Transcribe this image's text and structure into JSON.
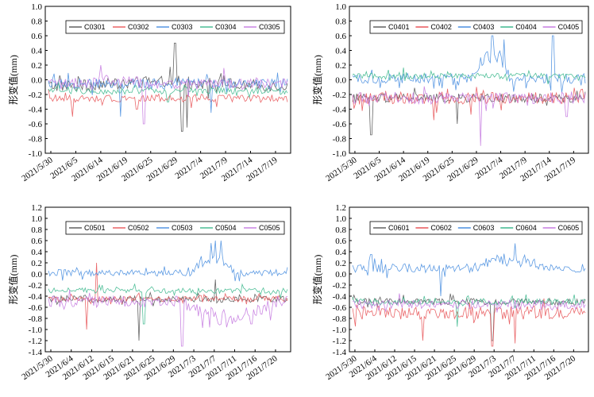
{
  "chart_data": [
    {
      "type": "line",
      "panel": "top-left",
      "ylabel": "形变值(mm)",
      "ylim": [
        -1.0,
        1.0
      ],
      "yticks": [
        1.0,
        0.8,
        0.6,
        0.4,
        0.2,
        0.0,
        -0.2,
        -0.4,
        -0.6,
        -0.8,
        -1.0
      ],
      "xticks": [
        "2021/5/30",
        "2021/6/5",
        "2021/6/14",
        "2021/6/19",
        "2021/6/25",
        "2021/6/29",
        "2021/7/4",
        "2021/7/9",
        "2021/7/14",
        "2021/7/19"
      ],
      "legend_position": "top",
      "series": [
        {
          "name": "C0301",
          "color": "#555555",
          "base": -0.08,
          "amp": 0.08,
          "spikes": [
            [
              0.53,
              0.5
            ],
            [
              0.56,
              -0.7
            ],
            [
              0.58,
              -0.65
            ]
          ],
          "hump": [
            0.15,
            0.85,
            0.05
          ]
        },
        {
          "name": "C0302",
          "color": "#e8575a",
          "base": -0.25,
          "amp": 0.05,
          "spikes": [
            [
              0.1,
              -0.5
            ],
            [
              0.37,
              -0.4
            ]
          ],
          "hump": [
            0,
            0,
            0
          ]
        },
        {
          "name": "C0303",
          "color": "#4a8fe0",
          "base": -0.05,
          "amp": 0.07,
          "spikes": [
            [
              0.3,
              -0.5
            ],
            [
              0.68,
              -0.45
            ]
          ],
          "hump": [
            0,
            0,
            0
          ]
        },
        {
          "name": "C0304",
          "color": "#3fb98f",
          "base": -0.15,
          "amp": 0.05,
          "spikes": [
            [
              0.5,
              -0.3
            ]
          ],
          "hump": [
            0,
            0,
            0
          ]
        },
        {
          "name": "C0305",
          "color": "#c57be0",
          "base": -0.05,
          "amp": 0.08,
          "spikes": [
            [
              0.22,
              0.2
            ],
            [
              0.4,
              -0.6
            ]
          ],
          "hump": [
            0.15,
            0.4,
            0.05
          ]
        }
      ]
    },
    {
      "type": "line",
      "panel": "top-right",
      "ylabel": "形变值(mm)",
      "ylim": [
        -1.0,
        1.0
      ],
      "yticks": [
        1.0,
        0.8,
        0.6,
        0.4,
        0.2,
        0.0,
        -0.2,
        -0.4,
        -0.6,
        -0.8,
        -1.0
      ],
      "xticks": [
        "2021/5/30",
        "2021/6/5",
        "2021/6/14",
        "2021/6/19",
        "2021/6/25",
        "2021/6/29",
        "2021/7/4",
        "2021/7/9",
        "2021/7/14",
        "2021/7/19"
      ],
      "legend_position": "top",
      "series": [
        {
          "name": "C0401",
          "color": "#555555",
          "base": -0.25,
          "amp": 0.06,
          "spikes": [
            [
              0.08,
              -0.75
            ],
            [
              0.45,
              -0.6
            ]
          ],
          "hump": [
            0,
            0,
            0
          ]
        },
        {
          "name": "C0402",
          "color": "#e8575a",
          "base": -0.25,
          "amp": 0.08,
          "spikes": [
            [
              0.35,
              -0.55
            ]
          ],
          "hump": [
            0,
            0,
            0
          ]
        },
        {
          "name": "C0403",
          "color": "#4a8fe0",
          "base": 0.02,
          "amp": 0.07,
          "spikes": [
            [
              0.6,
              0.6
            ],
            [
              0.65,
              0.55
            ],
            [
              0.86,
              0.6
            ]
          ],
          "hump": [
            0.52,
            0.68,
            0.35
          ]
        },
        {
          "name": "C0404",
          "color": "#3fb98f",
          "base": 0.05,
          "amp": 0.04,
          "spikes": [
            [
              0.2,
              0.1
            ]
          ],
          "hump": [
            0,
            0,
            0
          ]
        },
        {
          "name": "C0405",
          "color": "#c57be0",
          "base": -0.25,
          "amp": 0.08,
          "spikes": [
            [
              0.55,
              -0.9
            ],
            [
              0.92,
              -0.5
            ]
          ],
          "hump": [
            0,
            0,
            0
          ]
        }
      ]
    },
    {
      "type": "line",
      "panel": "bottom-left",
      "ylabel": "形变值(mm)",
      "ylim": [
        -1.4,
        1.2
      ],
      "yticks": [
        1.2,
        1.0,
        0.8,
        0.6,
        0.4,
        0.2,
        0.0,
        -0.2,
        -0.4,
        -0.6,
        -0.8,
        -1.0,
        -1.2,
        -1.4
      ],
      "xticks": [
        "2021/5/30",
        "2021/6/4",
        "2021/6/12",
        "2021/6/15",
        "2021/6/21",
        "2021/6/25",
        "2021/6/29",
        "2021/7/3",
        "2021/7/7",
        "2021/7/11",
        "2021/7/16",
        "2021/7/20"
      ],
      "legend_position": "top",
      "series": [
        {
          "name": "C0501",
          "color": "#555555",
          "base": -0.45,
          "amp": 0.06,
          "spikes": [
            [
              0.38,
              -1.2
            ],
            [
              0.7,
              -0.1
            ]
          ],
          "hump": [
            0,
            0,
            0
          ]
        },
        {
          "name": "C0502",
          "color": "#e8575a",
          "base": -0.45,
          "amp": 0.05,
          "spikes": [
            [
              0.16,
              -1.0
            ],
            [
              0.2,
              0.2
            ]
          ],
          "hump": [
            0,
            0,
            0
          ]
        },
        {
          "name": "C0503",
          "color": "#4a8fe0",
          "base": 0.02,
          "amp": 0.06,
          "spikes": [
            [
              0.7,
              0.6
            ],
            [
              0.72,
              0.6
            ]
          ],
          "hump": [
            0.6,
            0.78,
            0.3
          ]
        },
        {
          "name": "C0504",
          "color": "#3fb98f",
          "base": -0.3,
          "amp": 0.05,
          "spikes": [
            [
              0.4,
              -0.9
            ]
          ],
          "hump": [
            0,
            0,
            0
          ]
        },
        {
          "name": "C0505",
          "color": "#c57be0",
          "base": -0.5,
          "amp": 0.1,
          "spikes": [
            [
              0.56,
              -1.3
            ],
            [
              0.85,
              -0.9
            ]
          ],
          "hump": [
            0.55,
            0.95,
            -0.3
          ]
        }
      ]
    },
    {
      "type": "line",
      "panel": "bottom-right",
      "ylabel": "形变值(mm)",
      "ylim": [
        -1.4,
        1.2
      ],
      "yticks": [
        1.2,
        1.0,
        0.8,
        0.6,
        0.4,
        0.2,
        0.0,
        -0.2,
        -0.4,
        -0.6,
        -0.8,
        -1.0,
        -1.2,
        -1.4
      ],
      "xticks": [
        "2021/5/30",
        "2021/6/4",
        "2021/6/12",
        "2021/6/15",
        "2021/6/21",
        "2021/6/25",
        "2021/6/29",
        "2021/7/3",
        "2021/7/7",
        "2021/7/11",
        "2021/7/16",
        "2021/7/20"
      ],
      "legend_position": "top",
      "series": [
        {
          "name": "C0601",
          "color": "#555555",
          "base": -0.5,
          "amp": 0.06,
          "spikes": [
            [
              0.6,
              -1.2
            ]
          ],
          "hump": [
            0,
            0,
            0
          ]
        },
        {
          "name": "C0602",
          "color": "#e8575a",
          "base": -0.7,
          "amp": 0.12,
          "spikes": [
            [
              0.3,
              -1.2
            ],
            [
              0.6,
              -1.3
            ],
            [
              0.7,
              -1.25
            ]
          ],
          "hump": [
            0,
            0,
            0
          ]
        },
        {
          "name": "C0603",
          "color": "#4a8fe0",
          "base": 0.1,
          "amp": 0.08,
          "spikes": [
            [
              0.08,
              0.35
            ],
            [
              0.38,
              -0.4
            ],
            [
              0.7,
              0.55
            ]
          ],
          "hump": [
            0.5,
            0.85,
            0.15
          ]
        },
        {
          "name": "C0604",
          "color": "#3fb98f",
          "base": -0.5,
          "amp": 0.06,
          "spikes": [
            [
              0.45,
              -0.95
            ]
          ],
          "hump": [
            0,
            0,
            0
          ]
        },
        {
          "name": "C0605",
          "color": "#c57be0",
          "base": -0.55,
          "amp": 0.08,
          "spikes": [
            [
              0.2,
              -0.35
            ]
          ],
          "hump": [
            0,
            0,
            0
          ]
        }
      ]
    }
  ]
}
